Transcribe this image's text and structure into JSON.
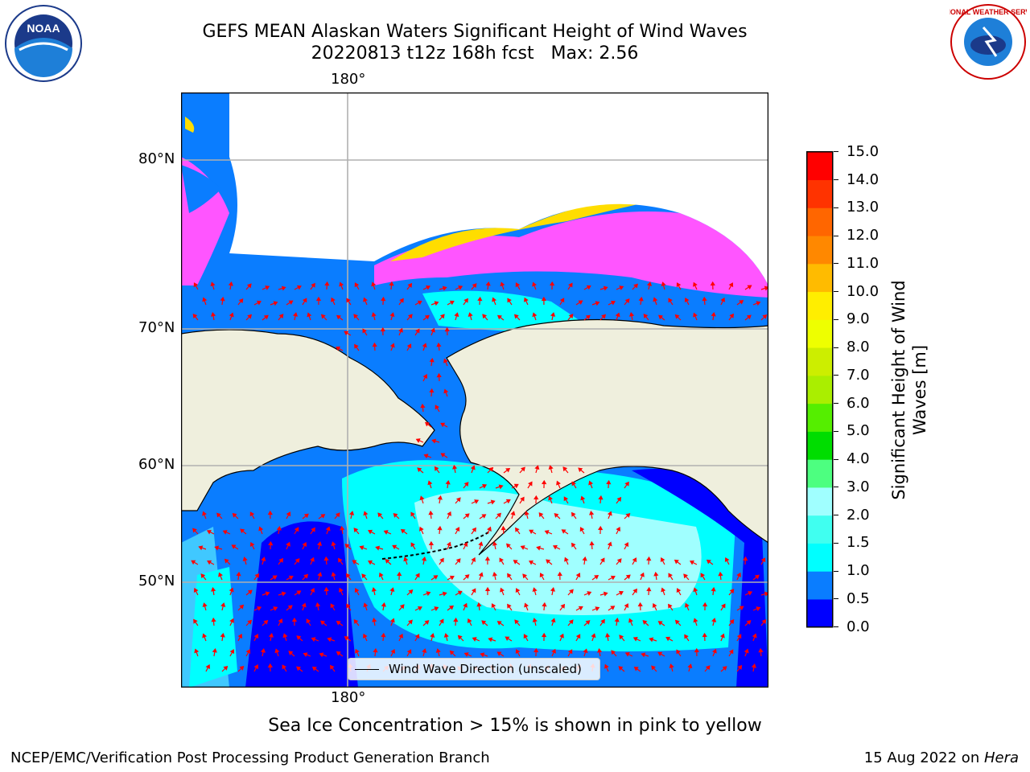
{
  "header": {
    "title_line1": "GEFS MEAN Alaskan Waters Significant Height of Wind Waves",
    "title_line2": "20220813 t12z 168h fcst   Max: 2.56"
  },
  "logos": {
    "left": {
      "name": "noaa-logo",
      "text": "NOAA"
    },
    "right": {
      "name": "nws-logo",
      "text": "NATIONAL WEATHER SERVICE"
    }
  },
  "map": {
    "lon_label_top": "180°",
    "lon_label_bottom": "180°",
    "lat_labels": [
      "80°N",
      "70°N",
      "60°N",
      "50°N"
    ],
    "colors": {
      "land": "#efefdd",
      "water_deep": "#0000ff",
      "water_mid": "#0a7dff",
      "water_light": "#40c8ff",
      "water_cyan": "#00ffff",
      "water_pale": "#a0ffff",
      "ice_pink": "#ff55ff",
      "ice_yellow": "#ffdd00",
      "arrow": "#ff0000",
      "grid": "#b0b0b0"
    },
    "legend_label": "Wind Wave Direction (unscaled)"
  },
  "colorbar": {
    "label": "Significant Height of Wind Waves [m]",
    "ticks": [
      "0.0",
      "0.5",
      "1.0",
      "1.5",
      "2.0",
      "3.0",
      "4.0",
      "5.0",
      "6.0",
      "7.0",
      "8.0",
      "9.0",
      "10.0",
      "11.0",
      "12.0",
      "13.0",
      "14.0",
      "15.0"
    ],
    "colors": [
      "#0000ff",
      "#0a7dff",
      "#00ffff",
      "#40fff0",
      "#a0ffff",
      "#4dff80",
      "#00dd00",
      "#55ee00",
      "#aaee00",
      "#ccee00",
      "#eeff00",
      "#ffee00",
      "#ffbb00",
      "#ff8800",
      "#ff6600",
      "#ff3300",
      "#ff0000"
    ]
  },
  "caption": "Sea Ice Concentration > 15% is shown in pink to yellow",
  "footer": {
    "left": "NCEP/EMC/Verification Post Processing Product Generation Branch",
    "right_date": "15 Aug 2022 on ",
    "right_host": "Hera"
  }
}
